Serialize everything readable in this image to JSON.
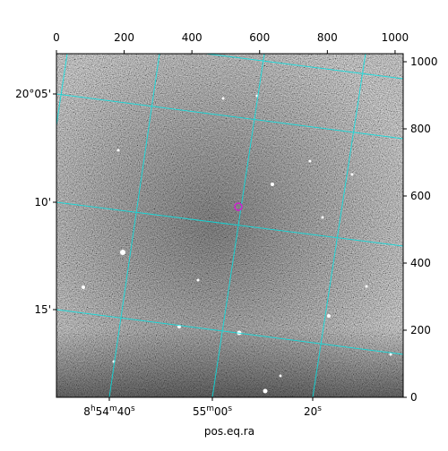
{
  "chart_data": {
    "type": "image",
    "xlabel": "pos.eq.ra",
    "xlim": [
      0,
      1024
    ],
    "xticks": [
      0,
      200,
      400,
      600,
      800,
      1000
    ],
    "ylim": [
      0,
      1024
    ],
    "yticks": [
      0,
      200,
      400,
      600,
      800,
      1000
    ],
    "dec_labels": [
      "20°05'",
      "10'",
      "15'"
    ],
    "ra_labels": [
      [
        "8",
        "h",
        "54",
        "m",
        "40",
        "s"
      ],
      [
        "55",
        "m",
        "00",
        "s"
      ],
      [
        "20",
        "s"
      ]
    ],
    "grid_color": "#00e5e5",
    "marker_color": "#d020d0"
  }
}
